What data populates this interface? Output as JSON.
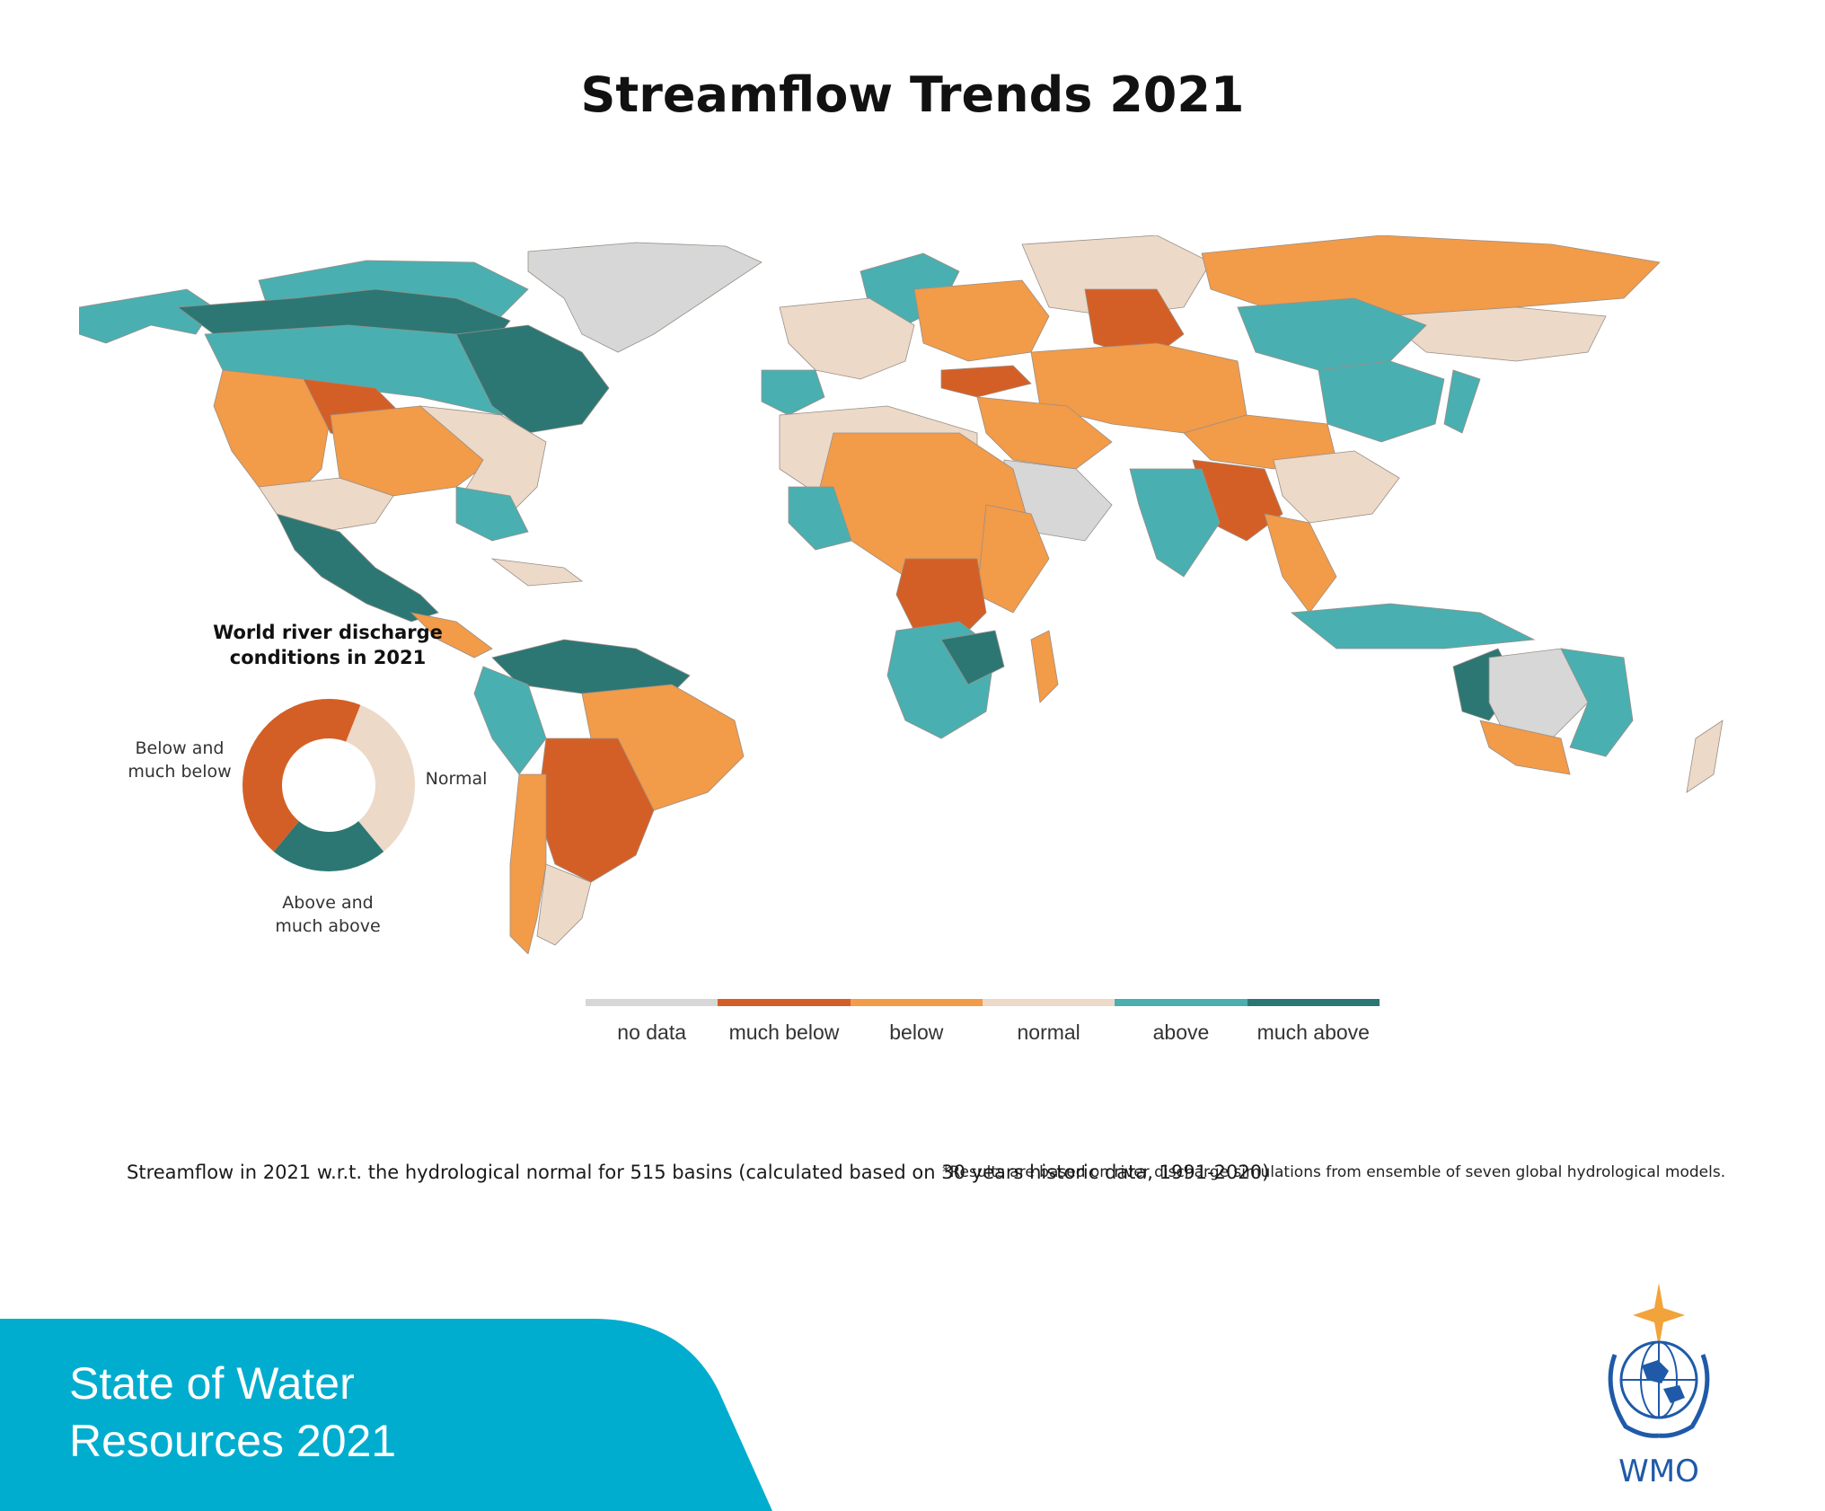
{
  "title": "Streamflow Trends 2021",
  "map": {
    "footnote": "*Results are based on river discharge simulations from ensemble of seven global hydrological models.",
    "colors": {
      "no_data": "#d7d7d7",
      "much_below": "#d45f26",
      "below": "#f29b49",
      "normal": "#ecd9c8",
      "above": "#4aafb1",
      "much_above": "#2c7774",
      "ocean": "#ffffff"
    },
    "legend": [
      {
        "label": "no data",
        "color": "#d7d7d7"
      },
      {
        "label": "much below",
        "color": "#d45f26"
      },
      {
        "label": "below",
        "color": "#f29b49"
      },
      {
        "label": "normal",
        "color": "#ecd9c8"
      },
      {
        "label": "above",
        "color": "#4aafb1"
      },
      {
        "label": "much above",
        "color": "#2c7774"
      }
    ]
  },
  "donut": {
    "title_line1": "World river discharge",
    "title_line2": "conditions in 2021",
    "label_below_line1": "Below and",
    "label_below_line2": "much below",
    "label_normal": "Normal",
    "label_above_line1": "Above and",
    "label_above_line2": "much above",
    "segments": [
      {
        "name": "Below and much below",
        "share": 0.45,
        "color": "#d45f26"
      },
      {
        "name": "Normal",
        "share": 0.33,
        "color": "#ecd9c8"
      },
      {
        "name": "Above and much above",
        "share": 0.22,
        "color": "#2c7774"
      }
    ]
  },
  "caption": "Streamflow in 2021 w.r.t. the hydrological normal for 515 basins (calculated based on 30 years historic data, 1991-2020)",
  "banner": {
    "line1": "State of Water",
    "line2": "Resources 2021",
    "color": "#00adcf"
  },
  "logo": {
    "text": "WMO",
    "color": "#1f5aa8",
    "star_color": "#f2a33a"
  }
}
